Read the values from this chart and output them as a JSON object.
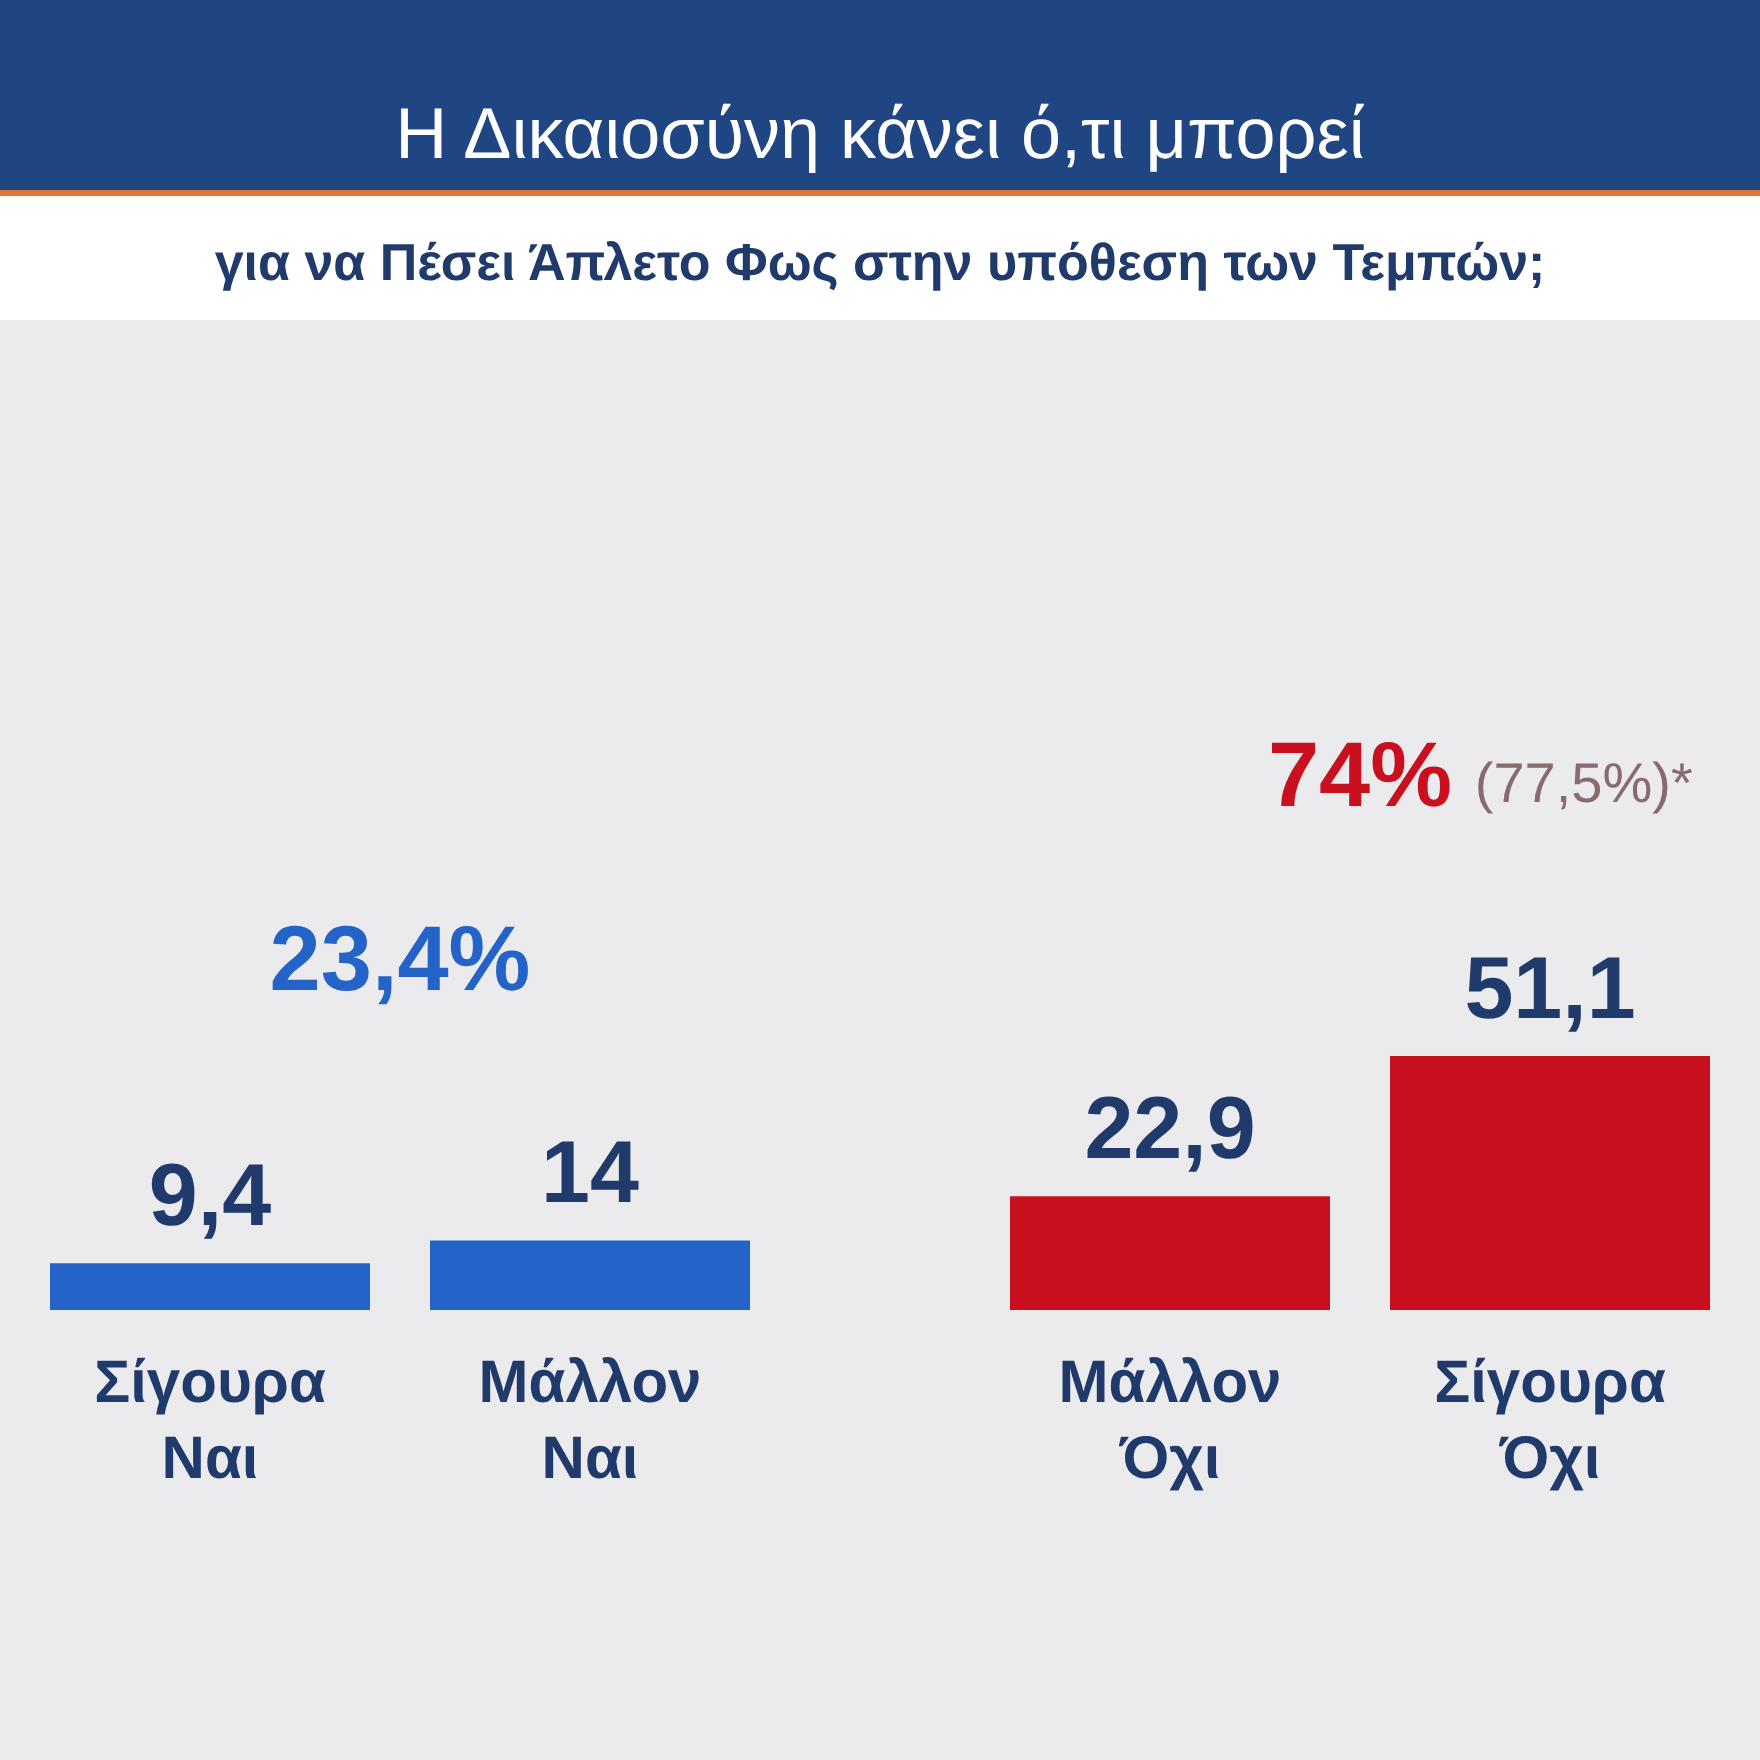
{
  "chart_data": {
    "type": "bar",
    "title": "Η Δικαιοσύνη κάνει ό,τι μπορεί",
    "subtitle": "για να Πέσει Άπλετο Φως στην υπόθεση των Τεμπών;",
    "categories": [
      "Σίγουρα Ναι",
      "Μάλλον Ναι",
      "Μάλλον Όχι",
      "Σίγουρα Όχι"
    ],
    "values": [
      9.4,
      14,
      22.9,
      51.1
    ],
    "colors": [
      "#2463c8",
      "#2463c8",
      "#c8101e",
      "#c8101e"
    ],
    "value_labels": [
      "9,4",
      "14",
      "22,9",
      "51,1"
    ],
    "annotations": [
      "23,4%",
      "74%",
      "(77,5%)*"
    ]
  }
}
